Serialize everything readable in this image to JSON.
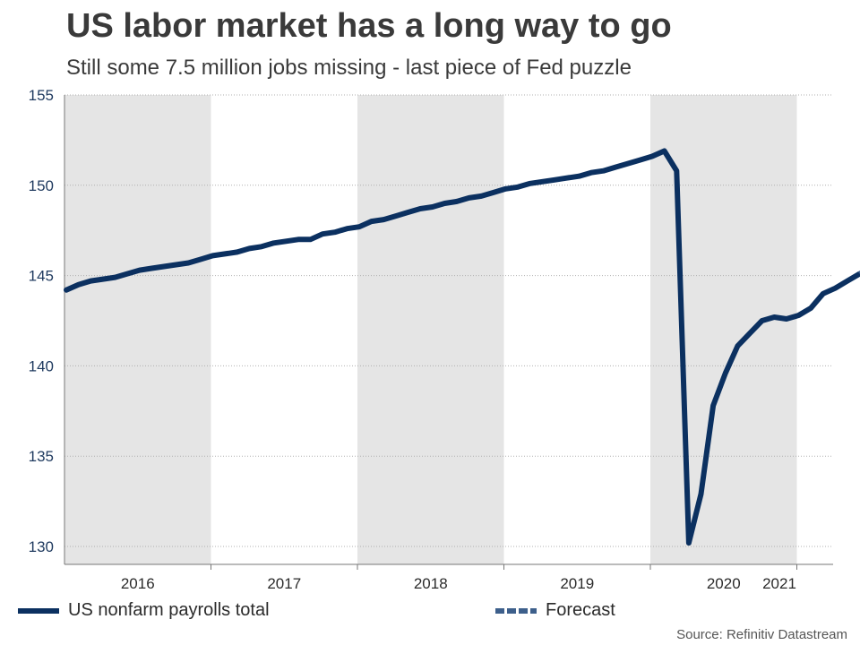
{
  "title": "US labor market has a long way to go",
  "subtitle": "Still some 7.5 million jobs missing - last piece of Fed puzzle",
  "source": "Source: Refinitiv Datastream",
  "colors": {
    "series": "#0b3060",
    "forecast": "#3d5f8b",
    "shade": "#e5e5e5",
    "axis_text": "#1f3a5f",
    "grid": "#b0b0b0"
  },
  "legend": {
    "series_label": "US nonfarm payrolls total",
    "forecast_label": "Forecast"
  },
  "chart_data": {
    "type": "line",
    "title": "US labor market has a long way to go",
    "subtitle": "Still some 7.5 million jobs missing - last piece of Fed puzzle",
    "xlabel": "",
    "ylabel": "",
    "ylim": [
      130,
      155
    ],
    "yticks": [
      130,
      135,
      140,
      145,
      150,
      155
    ],
    "xlim": [
      "2016-01",
      "2021-07"
    ],
    "year_labels": [
      "2016",
      "2017",
      "2018",
      "2019",
      "2020",
      "2021"
    ],
    "shaded_years": [
      "2016",
      "2018",
      "2020"
    ],
    "grid": "horizontal dotted",
    "legend_position": "bottom",
    "series": [
      {
        "name": "US nonfarm payrolls total",
        "x": [
          "2016-01",
          "2016-02",
          "2016-03",
          "2016-04",
          "2016-05",
          "2016-06",
          "2016-07",
          "2016-08",
          "2016-09",
          "2016-10",
          "2016-11",
          "2016-12",
          "2017-01",
          "2017-02",
          "2017-03",
          "2017-04",
          "2017-05",
          "2017-06",
          "2017-07",
          "2017-08",
          "2017-09",
          "2017-10",
          "2017-11",
          "2017-12",
          "2018-01",
          "2018-02",
          "2018-03",
          "2018-04",
          "2018-05",
          "2018-06",
          "2018-07",
          "2018-08",
          "2018-09",
          "2018-10",
          "2018-11",
          "2018-12",
          "2019-01",
          "2019-02",
          "2019-03",
          "2019-04",
          "2019-05",
          "2019-06",
          "2019-07",
          "2019-08",
          "2019-09",
          "2019-10",
          "2019-11",
          "2019-12",
          "2020-01",
          "2020-02",
          "2020-03",
          "2020-04",
          "2020-05",
          "2020-06",
          "2020-07",
          "2020-08",
          "2020-09",
          "2020-10",
          "2020-11",
          "2020-12",
          "2021-01",
          "2021-02",
          "2021-03",
          "2021-04",
          "2021-05",
          "2021-06"
        ],
        "values": [
          144.2,
          144.5,
          144.7,
          144.8,
          144.9,
          145.1,
          145.3,
          145.4,
          145.5,
          145.6,
          145.7,
          145.9,
          146.1,
          146.2,
          146.3,
          146.5,
          146.6,
          146.8,
          146.9,
          147.0,
          147.0,
          147.3,
          147.4,
          147.6,
          147.7,
          148.0,
          148.1,
          148.3,
          148.5,
          148.7,
          148.8,
          149.0,
          149.1,
          149.3,
          149.4,
          149.6,
          149.8,
          149.9,
          150.1,
          150.2,
          150.3,
          150.4,
          150.5,
          150.7,
          150.8,
          151.0,
          151.2,
          151.4,
          151.6,
          151.9,
          150.8,
          130.2,
          132.9,
          137.8,
          139.6,
          141.1,
          141.8,
          142.5,
          142.7,
          142.6,
          142.8,
          143.2,
          144.0,
          144.3,
          144.7,
          145.1
        ]
      },
      {
        "name": "Forecast",
        "x": [
          "2021-06",
          "2021-07"
        ],
        "values": [
          145.1,
          145.7
        ]
      }
    ]
  }
}
